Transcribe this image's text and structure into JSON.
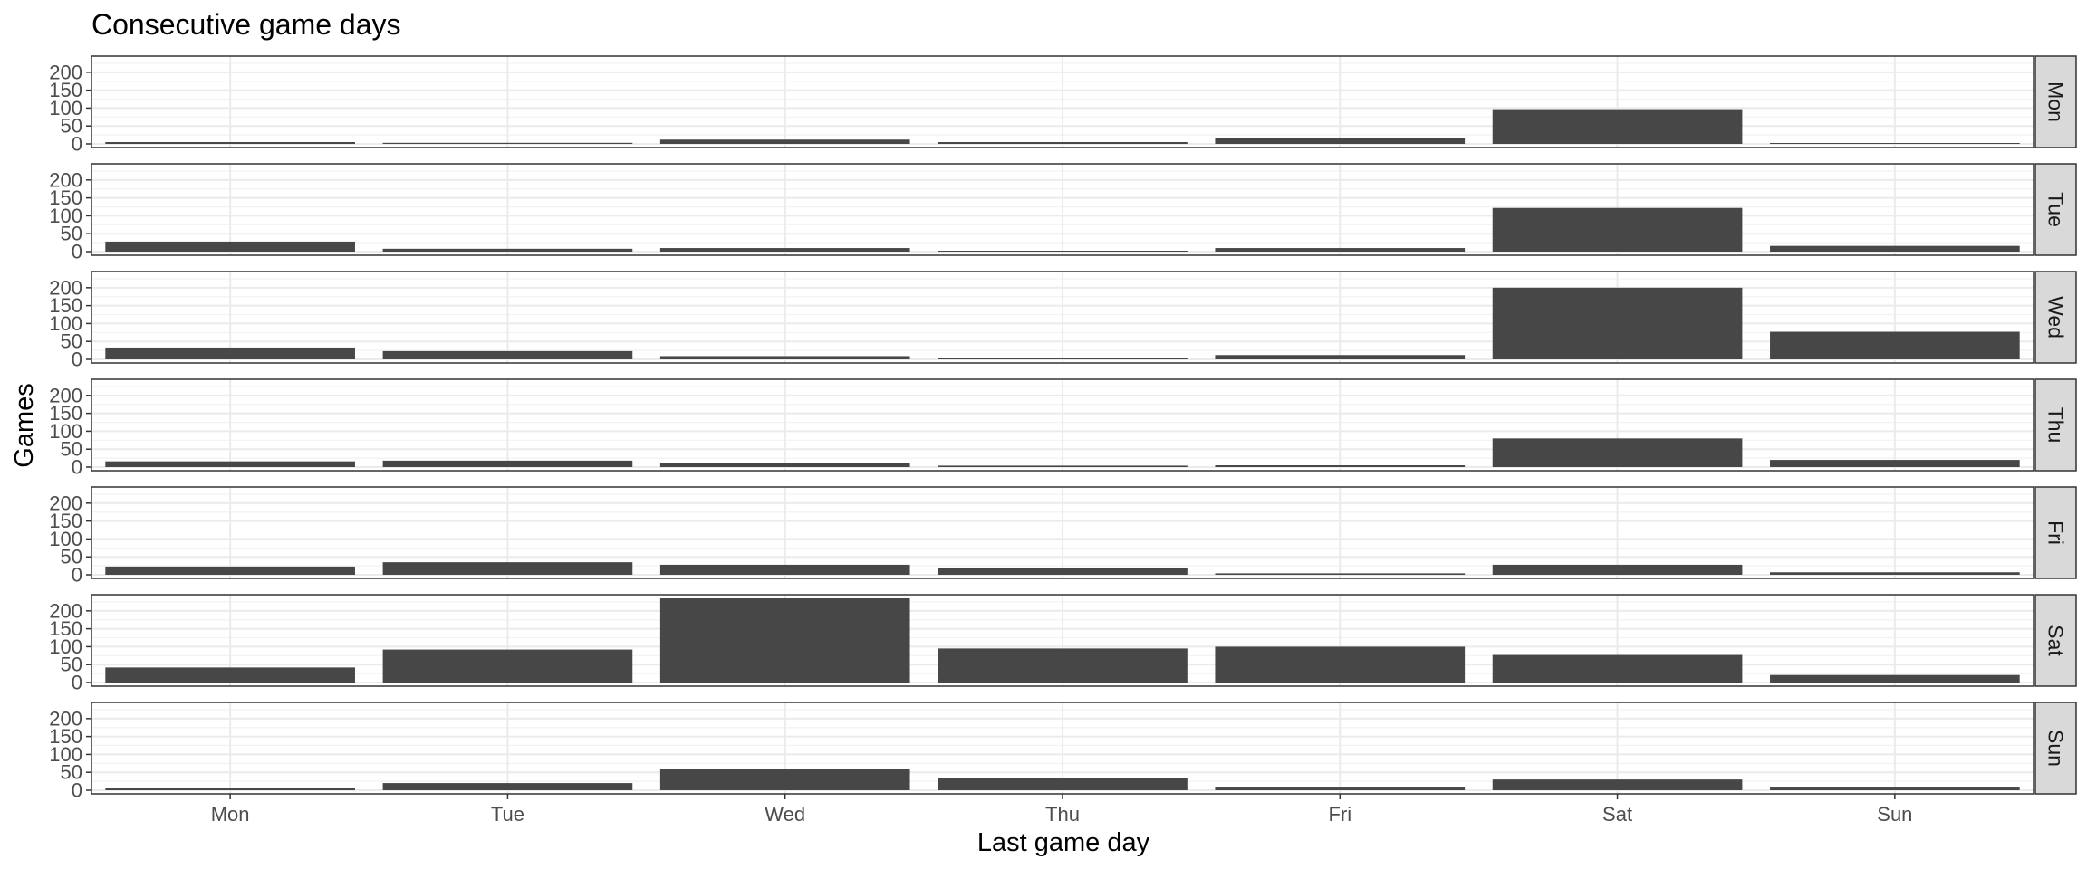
{
  "chart_data": {
    "type": "bar",
    "title": "Consecutive game days",
    "xlabel": "Last game day",
    "ylabel": "Games",
    "ylim": [
      0,
      240
    ],
    "yticks": [
      0,
      50,
      100,
      150,
      200
    ],
    "categories": [
      "Mon",
      "Tue",
      "Wed",
      "Thu",
      "Fri",
      "Sat",
      "Sun"
    ],
    "grid": true,
    "theme": "bw",
    "bar_color": "#474747",
    "panels": [
      {
        "facet": "Mon",
        "values": [
          5,
          3,
          12,
          5,
          17,
          97,
          2
        ]
      },
      {
        "facet": "Tue",
        "values": [
          28,
          8,
          10,
          2,
          10,
          122,
          16
        ]
      },
      {
        "facet": "Wed",
        "values": [
          33,
          23,
          9,
          5,
          12,
          200,
          77
        ]
      },
      {
        "facet": "Thu",
        "values": [
          16,
          18,
          11,
          4,
          5,
          80,
          20
        ]
      },
      {
        "facet": "Fri",
        "values": [
          23,
          35,
          28,
          20,
          4,
          28,
          7
        ]
      },
      {
        "facet": "Sat",
        "values": [
          42,
          92,
          235,
          95,
          100,
          77,
          21
        ]
      },
      {
        "facet": "Sun",
        "values": [
          6,
          20,
          60,
          35,
          10,
          30,
          10
        ]
      }
    ]
  }
}
